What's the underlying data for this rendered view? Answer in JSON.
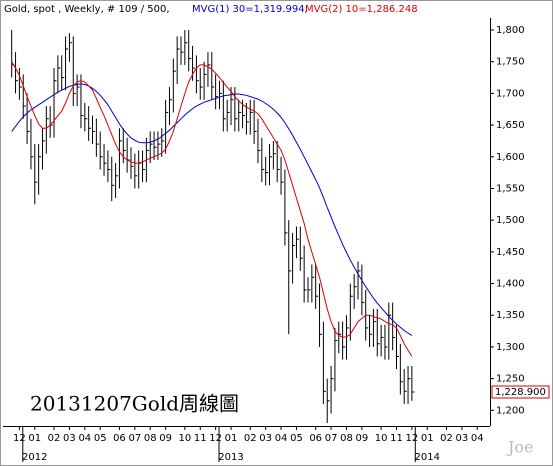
{
  "chart_data": {
    "type": "ohlc",
    "title": "Gold, spot , Weekly, # 109 / 500,",
    "annotation": "20131207Gold周線圖",
    "watermark": "Joe",
    "last_price_label": "1,228.900",
    "bar_color": "#000000",
    "categories": [
      null,
      null,
      null,
      null,
      null,
      null,
      null,
      null,
      null,
      null,
      null,
      null,
      null,
      null,
      null,
      null,
      null,
      null,
      null,
      null,
      null,
      null,
      null,
      null,
      null,
      null,
      null,
      null,
      null,
      null,
      null,
      null,
      null,
      null,
      null,
      null,
      null,
      null,
      null,
      null,
      null,
      null,
      null,
      null,
      null,
      null,
      null,
      null,
      null,
      null,
      null,
      null,
      null,
      null,
      null,
      null,
      null,
      null,
      null,
      null,
      null,
      null,
      null,
      null,
      null,
      null,
      null,
      null,
      null,
      null,
      null,
      null,
      null,
      null,
      null,
      null,
      null,
      null,
      null,
      null,
      null,
      null,
      null,
      null,
      null,
      null,
      null,
      null,
      null,
      null,
      null,
      null,
      null,
      null,
      null,
      null,
      null,
      null,
      null,
      null,
      null,
      null,
      null,
      null,
      null
    ],
    "high": [
      1800,
      1765,
      1740,
      1730,
      1700,
      1660,
      1620,
      1620,
      1645,
      1680,
      1680,
      1740,
      1760,
      1760,
      1790,
      1795,
      1790,
      1730,
      1730,
      1685,
      1680,
      1665,
      1660,
      1640,
      1620,
      1610,
      1600,
      1590,
      1645,
      1645,
      1630,
      1615,
      1605,
      1610,
      1610,
      1630,
      1640,
      1640,
      1640,
      1645,
      1690,
      1710,
      1755,
      1790,
      1790,
      1800,
      1800,
      1775,
      1760,
      1740,
      1750,
      1765,
      1765,
      1730,
      1720,
      1720,
      1690,
      1710,
      1710,
      1690,
      1690,
      1685,
      1690,
      1690,
      1660,
      1630,
      1600,
      1620,
      1625,
      1625,
      1600,
      1580,
      1500,
      1480,
      1490,
      1490,
      1460,
      1410,
      1430,
      1430,
      1400,
      1340,
      1250,
      1270,
      1330,
      1340,
      1340,
      1350,
      1400,
      1415,
      1435,
      1430,
      1390,
      1350,
      1360,
      1360,
      1335,
      1335,
      1370,
      1370,
      1335,
      1305,
      1265,
      1270,
      1270
    ],
    "low": [
      1725,
      1700,
      1690,
      1660,
      1620,
      1580,
      1525,
      1540,
      1580,
      1605,
      1630,
      1630,
      1700,
      1705,
      1705,
      1750,
      1680,
      1680,
      1645,
      1640,
      1625,
      1620,
      1600,
      1580,
      1570,
      1560,
      1530,
      1535,
      1550,
      1590,
      1575,
      1565,
      1550,
      1550,
      1560,
      1560,
      1590,
      1595,
      1595,
      1600,
      1605,
      1650,
      1670,
      1715,
      1745,
      1745,
      1735,
      1720,
      1700,
      1690,
      1690,
      1710,
      1690,
      1675,
      1675,
      1640,
      1640,
      1650,
      1640,
      1640,
      1645,
      1635,
      1635,
      1620,
      1590,
      1560,
      1555,
      1555,
      1580,
      1560,
      1540,
      1460,
      1320,
      1400,
      1440,
      1420,
      1370,
      1370,
      1370,
      1360,
      1300,
      1210,
      1180,
      1195,
      1230,
      1290,
      1280,
      1280,
      1310,
      1360,
      1375,
      1350,
      1310,
      1300,
      1300,
      1285,
      1285,
      1280,
      1280,
      1295,
      1265,
      1225,
      1210,
      1210,
      1215
    ],
    "close": [
      1745,
      1720,
      1710,
      1680,
      1640,
      1600,
      1560,
      1600,
      1625,
      1660,
      1650,
      1720,
      1740,
      1725,
      1770,
      1780,
      1700,
      1710,
      1665,
      1660,
      1645,
      1640,
      1620,
      1600,
      1590,
      1580,
      1555,
      1570,
      1625,
      1610,
      1595,
      1585,
      1570,
      1590,
      1580,
      1610,
      1620,
      1615,
      1620,
      1625,
      1670,
      1690,
      1735,
      1770,
      1765,
      1780,
      1755,
      1740,
      1720,
      1710,
      1730,
      1745,
      1710,
      1695,
      1700,
      1660,
      1670,
      1690,
      1660,
      1670,
      1665,
      1655,
      1670,
      1640,
      1610,
      1580,
      1575,
      1600,
      1605,
      1580,
      1560,
      1480,
      1420,
      1460,
      1470,
      1440,
      1390,
      1390,
      1410,
      1380,
      1320,
      1230,
      1215,
      1250,
      1310,
      1320,
      1300,
      1330,
      1380,
      1395,
      1420,
      1370,
      1330,
      1320,
      1340,
      1305,
      1315,
      1300,
      1350,
      1315,
      1285,
      1245,
      1230,
      1250,
      1228.9
    ],
    "series": [
      {
        "name": "MVG(1) 30=1,319.994,",
        "color": "#0000cc",
        "values": [
          1640,
          1648,
          1656,
          1663,
          1669,
          1674,
          1678,
          1682,
          1686,
          1690,
          1694,
          1698,
          1702,
          1705,
          1708,
          1711,
          1713,
          1714,
          1715,
          1714,
          1712,
          1708,
          1703,
          1697,
          1690,
          1682,
          1672,
          1662,
          1652,
          1643,
          1636,
          1630,
          1626,
          1623,
          1622,
          1622,
          1623,
          1625,
          1628,
          1632,
          1637,
          1642,
          1648,
          1654,
          1660,
          1666,
          1671,
          1676,
          1680,
          1683,
          1686,
          1688,
          1690,
          1692,
          1694,
          1696,
          1697,
          1698,
          1699,
          1699,
          1698,
          1697,
          1695,
          1693,
          1691,
          1688,
          1684,
          1680,
          1675,
          1669,
          1662,
          1654,
          1644,
          1634,
          1623,
          1612,
          1600,
          1588,
          1576,
          1564,
          1551,
          1536,
          1520,
          1505,
          1490,
          1476,
          1462,
          1449,
          1437,
          1426,
          1415,
          1405,
          1395,
          1386,
          1377,
          1369,
          1362,
          1355,
          1348,
          1342,
          1336,
          1331,
          1326,
          1322,
          1318
        ]
      },
      {
        "name": "MVG(2) 10=1,286.248",
        "color": "#dd0000",
        "values": [
          1750,
          1740,
          1728,
          1712,
          1695,
          1680,
          1665,
          1652,
          1645,
          1645,
          1650,
          1657,
          1665,
          1672,
          1685,
          1700,
          1712,
          1718,
          1720,
          1718,
          1712,
          1705,
          1692,
          1678,
          1665,
          1650,
          1635,
          1620,
          1608,
          1600,
          1595,
          1592,
          1590,
          1590,
          1592,
          1595,
          1598,
          1600,
          1603,
          1606,
          1612,
          1625,
          1640,
          1660,
          1680,
          1700,
          1718,
          1730,
          1740,
          1745,
          1745,
          1742,
          1738,
          1732,
          1725,
          1717,
          1710,
          1703,
          1695,
          1688,
          1683,
          1678,
          1675,
          1672,
          1668,
          1660,
          1650,
          1640,
          1630,
          1620,
          1610,
          1595,
          1575,
          1555,
          1535,
          1515,
          1495,
          1470,
          1450,
          1430,
          1410,
          1385,
          1360,
          1340,
          1325,
          1318,
          1315,
          1316,
          1320,
          1330,
          1340,
          1345,
          1350,
          1350,
          1348,
          1346,
          1344,
          1340,
          1337,
          1335,
          1330,
          1318,
          1305,
          1295,
          1285
        ]
      }
    ],
    "ylim": [
      1180,
      1830
    ],
    "yticks": [
      {
        "value": 1200,
        "label": "1,200"
      },
      {
        "value": 1250,
        "label": "1,250"
      },
      {
        "value": 1300,
        "label": "1,300"
      },
      {
        "value": 1350,
        "label": "1,350"
      },
      {
        "value": 1400,
        "label": "1,400"
      },
      {
        "value": 1450,
        "label": "1,450"
      },
      {
        "value": 1500,
        "label": "1,500"
      },
      {
        "value": 1550,
        "label": "1,550"
      },
      {
        "value": 1600,
        "label": "1,600"
      },
      {
        "value": 1650,
        "label": "1,650"
      },
      {
        "value": 1700,
        "label": "1,700"
      },
      {
        "value": 1750,
        "label": "1,750"
      },
      {
        "value": 1800,
        "label": "1,800"
      }
    ],
    "xlim": [
      -2,
      123
    ],
    "xticks": [
      {
        "value": 2,
        "label": "12"
      },
      {
        "value": 6,
        "label": "01"
      },
      {
        "value": 11,
        "label": "02"
      },
      {
        "value": 15,
        "label": "03"
      },
      {
        "value": 19,
        "label": "04"
      },
      {
        "value": 23,
        "label": "05"
      },
      {
        "value": 28,
        "label": "06"
      },
      {
        "value": 32,
        "label": "07"
      },
      {
        "value": 36,
        "label": "08"
      },
      {
        "value": 40,
        "label": "09"
      },
      {
        "value": 45,
        "label": "10"
      },
      {
        "value": 49,
        "label": "11"
      },
      {
        "value": 53,
        "label": "12"
      },
      {
        "value": 57,
        "label": "01"
      },
      {
        "value": 62,
        "label": "02"
      },
      {
        "value": 66,
        "label": "03"
      },
      {
        "value": 70,
        "label": "04"
      },
      {
        "value": 74,
        "label": "05"
      },
      {
        "value": 79,
        "label": "06"
      },
      {
        "value": 83,
        "label": "07"
      },
      {
        "value": 87,
        "label": "08"
      },
      {
        "value": 91,
        "label": "09"
      },
      {
        "value": 96,
        "label": "10"
      },
      {
        "value": 100,
        "label": "11"
      },
      {
        "value": 104,
        "label": "12"
      },
      {
        "value": 108,
        "label": "01"
      },
      {
        "value": 113,
        "label": "02"
      },
      {
        "value": 117,
        "label": "03"
      },
      {
        "value": 121,
        "label": "04"
      }
    ],
    "year_labels": [
      {
        "value": 6,
        "label": "2012"
      },
      {
        "value": 57,
        "label": "2013"
      },
      {
        "value": 108,
        "label": "2014"
      }
    ]
  }
}
